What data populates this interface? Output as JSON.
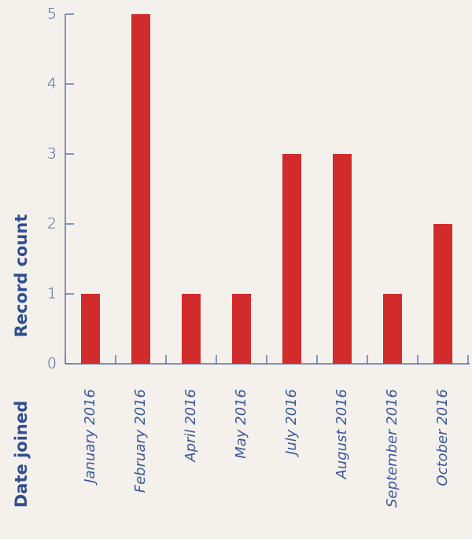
{
  "chart_data": {
    "type": "bar",
    "x_label": "Date joined",
    "y_label": "Record count",
    "categories": [
      "January 2016",
      "February 2016",
      "April 2016",
      "May 2016",
      "July 2016",
      "August 2016",
      "September 2016",
      "October 2016"
    ],
    "values": [
      1,
      5,
      1,
      1,
      3,
      3,
      1,
      2
    ],
    "color": "#d22b2b",
    "ylim": [
      0,
      5
    ],
    "yticks": [
      0,
      1,
      2,
      3,
      4,
      5
    ],
    "grid": false
  }
}
